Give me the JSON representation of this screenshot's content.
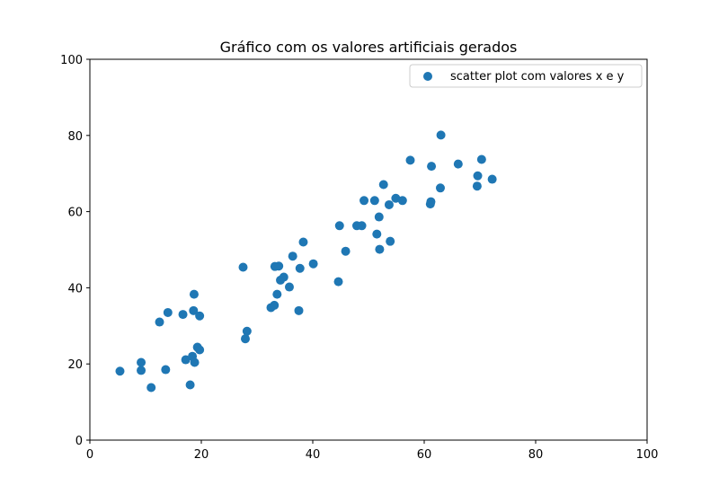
{
  "chart_data": {
    "type": "scatter",
    "title": "Gráfico com os valores artificiais gerados",
    "xlabel": "",
    "ylabel": "",
    "xlim": [
      0,
      100
    ],
    "ylim": [
      0,
      100
    ],
    "xticks": [
      0,
      20,
      40,
      60,
      80,
      100
    ],
    "yticks": [
      0,
      20,
      40,
      60,
      80,
      100
    ],
    "grid": false,
    "legend_position": "top-right",
    "color": "#1f77b4",
    "series": [
      {
        "name": "scatter plot com valores x e y",
        "points": [
          [
            5.4,
            18.1
          ],
          [
            9.2,
            20.4
          ],
          [
            9.2,
            18.3
          ],
          [
            11.0,
            13.8
          ],
          [
            13.6,
            18.5
          ],
          [
            12.5,
            31.0
          ],
          [
            14.0,
            33.5
          ],
          [
            16.7,
            33.0
          ],
          [
            17.2,
            21.1
          ],
          [
            18.0,
            14.5
          ],
          [
            18.4,
            22.0
          ],
          [
            18.6,
            34.0
          ],
          [
            18.7,
            38.3
          ],
          [
            18.8,
            20.4
          ],
          [
            19.3,
            24.4
          ],
          [
            19.7,
            23.7
          ],
          [
            19.7,
            32.6
          ],
          [
            27.5,
            45.4
          ],
          [
            27.9,
            26.6
          ],
          [
            28.2,
            28.6
          ],
          [
            32.5,
            34.8
          ],
          [
            33.1,
            35.4
          ],
          [
            33.2,
            45.6
          ],
          [
            33.6,
            38.3
          ],
          [
            33.9,
            45.7
          ],
          [
            34.2,
            42.0
          ],
          [
            34.8,
            42.8
          ],
          [
            35.8,
            40.2
          ],
          [
            36.4,
            48.3
          ],
          [
            37.5,
            34.0
          ],
          [
            37.7,
            45.1
          ],
          [
            38.3,
            52.0
          ],
          [
            40.1,
            46.3
          ],
          [
            44.6,
            41.6
          ],
          [
            44.8,
            56.3
          ],
          [
            45.9,
            49.6
          ],
          [
            47.9,
            56.3
          ],
          [
            48.8,
            56.3
          ],
          [
            49.2,
            62.9
          ],
          [
            51.1,
            62.9
          ],
          [
            51.5,
            54.1
          ],
          [
            51.9,
            58.6
          ],
          [
            52.0,
            50.1
          ],
          [
            52.7,
            67.1
          ],
          [
            53.7,
            61.8
          ],
          [
            53.9,
            52.2
          ],
          [
            54.9,
            63.5
          ],
          [
            56.1,
            62.9
          ],
          [
            57.5,
            73.5
          ],
          [
            61.1,
            62.0
          ],
          [
            61.2,
            62.6
          ],
          [
            61.3,
            71.9
          ],
          [
            62.9,
            66.2
          ],
          [
            63.0,
            80.1
          ],
          [
            66.1,
            72.5
          ],
          [
            69.5,
            66.7
          ],
          [
            69.6,
            69.4
          ],
          [
            70.3,
            73.7
          ],
          [
            72.2,
            68.5
          ]
        ]
      }
    ]
  }
}
